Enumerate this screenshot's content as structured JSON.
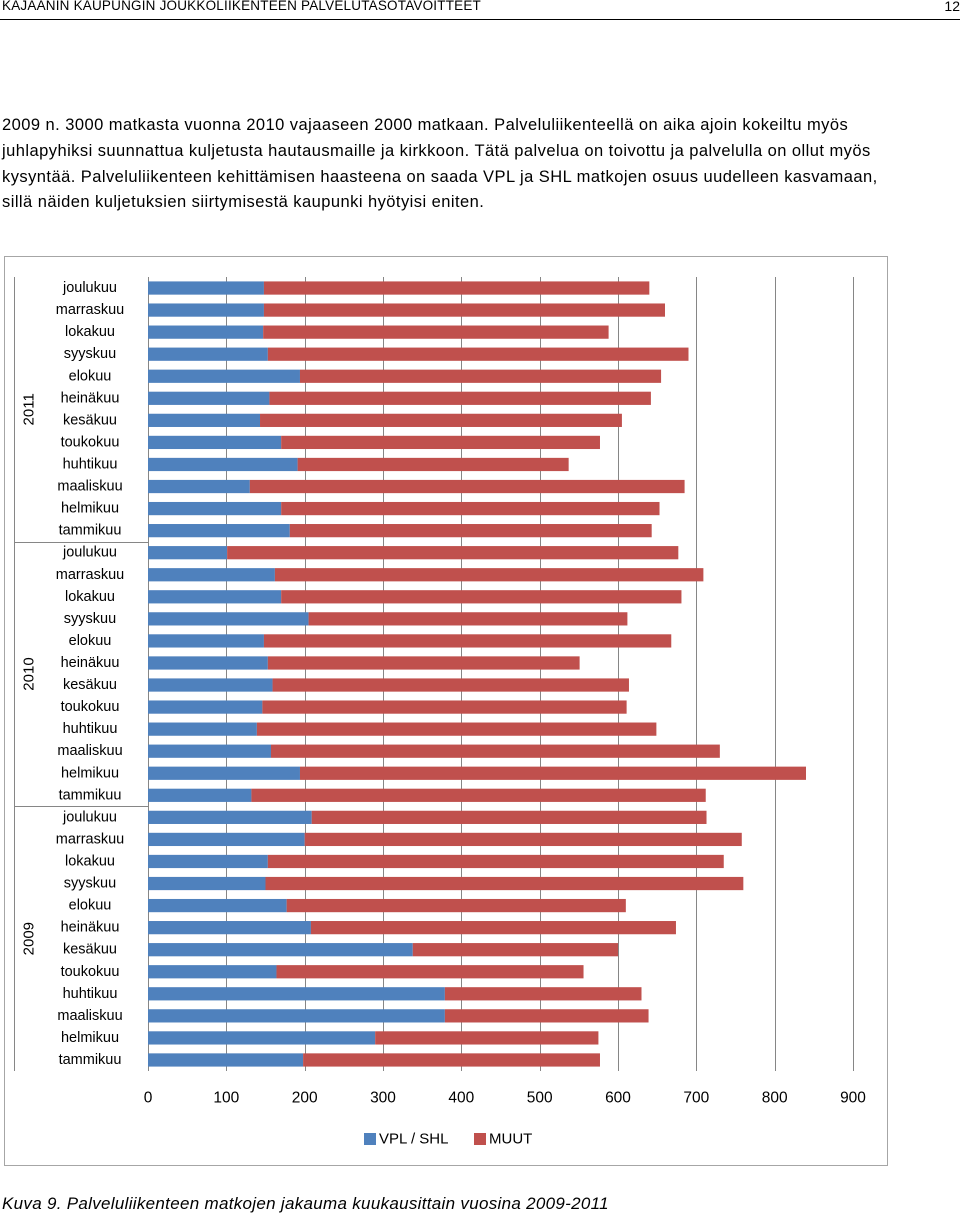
{
  "header": {
    "title": "KAJAANIN KAUPUNGIN JOUKKOLIIKENTEEN PALVELUTASOTAVOITTEET",
    "page_number": "12"
  },
  "body": {
    "paragraph": "2009 n. 3000 matkasta vuonna 2010 vajaaseen 2000 matkaan. Palveluliikenteellä on aika ajoin kokeiltu myös juhlapyhiksi suunnattua kuljetusta hautausmaille ja kirkkoon. Tätä palvelua on toivottu ja palvelulla on ollut myös kysyntää. Palveluliikenteen kehittämisen haasteena on saada VPL ja SHL matkojen osuus uudelleen kasvamaan, sillä näiden kuljetuksien siirtymisestä kaupunki hyötyisi eniten."
  },
  "caption": "Kuva 9. Palveluliikenteen matkojen jakauma kuukausittain vuosina 2009-2011",
  "colors": {
    "vpl_shl": "#4f81bd",
    "muut": "#c0504d",
    "grid": "#868686",
    "frame": "#a6a6a6"
  },
  "chart_data": {
    "type": "bar",
    "orientation": "horizontal",
    "stacked": true,
    "title": "",
    "xlabel": "",
    "ylabel": "",
    "xlim": [
      0,
      900
    ],
    "x_ticks": [
      "0",
      "100",
      "200",
      "300",
      "400",
      "500",
      "600",
      "700",
      "800",
      "900"
    ],
    "grid": true,
    "legend_position": "bottom",
    "groups": [
      {
        "label": "2011",
        "months": [
          "joulukuu",
          "marraskuu",
          "lokakuu",
          "syyskuu",
          "elokuu",
          "heinäkuu",
          "kesäkuu",
          "toukokuu",
          "huhtikuu",
          "maaliskuu",
          "helmikuu",
          "tammikuu"
        ]
      },
      {
        "label": "2010",
        "months": [
          "joulukuu",
          "marraskuu",
          "lokakuu",
          "syyskuu",
          "elokuu",
          "heinäkuu",
          "kesäkuu",
          "toukokuu",
          "huhtikuu",
          "maaliskuu",
          "helmikuu",
          "tammikuu"
        ]
      },
      {
        "label": "2009",
        "months": [
          "joulukuu",
          "marraskuu",
          "lokakuu",
          "syyskuu",
          "elokuu",
          "heinäkuu",
          "kesäkuu",
          "toukokuu",
          "huhtikuu",
          "maaliskuu",
          "helmikuu",
          "tammikuu"
        ]
      }
    ],
    "series": [
      {
        "name": "VPL / SHL",
        "values": [
          148,
          148,
          147,
          153,
          194,
          155,
          143,
          170,
          191,
          130,
          170,
          181,
          101,
          162,
          170,
          205,
          148,
          153,
          159,
          146,
          139,
          157,
          194,
          132,
          209,
          200,
          153,
          150,
          177,
          208,
          338,
          164,
          379,
          379,
          290,
          198
        ]
      },
      {
        "name": "MUUT",
        "values": [
          492,
          512,
          441,
          537,
          461,
          487,
          462,
          407,
          346,
          555,
          483,
          462,
          576,
          547,
          511,
          407,
          520,
          398,
          455,
          465,
          510,
          573,
          646,
          580,
          504,
          558,
          582,
          610,
          433,
          466,
          262,
          392,
          251,
          260,
          285,
          379
        ]
      }
    ]
  }
}
